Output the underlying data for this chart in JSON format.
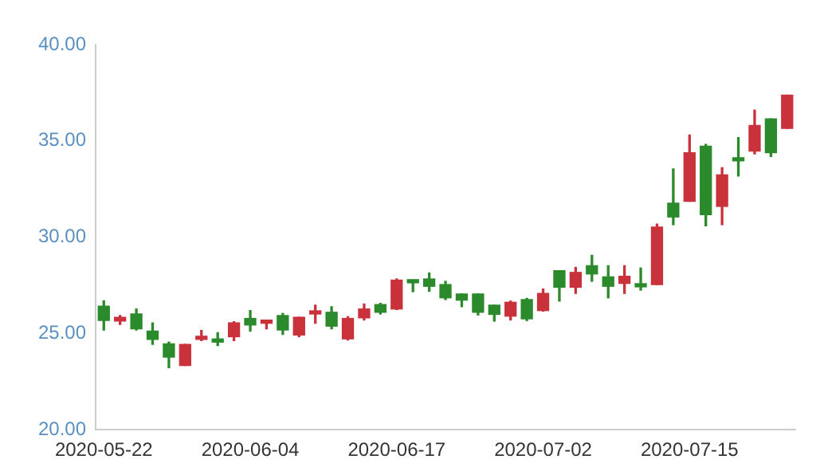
{
  "chart_data": {
    "type": "candlestick",
    "categories": [
      "2020-05-22",
      null,
      null,
      null,
      null,
      null,
      null,
      null,
      null,
      "2020-06-04",
      null,
      null,
      null,
      null,
      null,
      null,
      null,
      null,
      "2020-06-17",
      null,
      null,
      null,
      null,
      null,
      null,
      null,
      null,
      "2020-07-02",
      null,
      null,
      null,
      null,
      null,
      null,
      null,
      null,
      "2020-07-15",
      null,
      null,
      null,
      null,
      null,
      null
    ],
    "ohlc": [
      [
        26.42,
        26.7,
        25.18,
        25.67
      ],
      [
        25.64,
        25.93,
        25.47,
        25.84
      ],
      [
        26.01,
        26.27,
        25.18,
        25.24
      ],
      [
        25.12,
        25.55,
        24.43,
        24.69
      ],
      [
        24.46,
        24.55,
        23.22,
        23.77
      ],
      [
        23.34,
        24.43,
        23.34,
        24.43
      ],
      [
        24.69,
        25.15,
        24.63,
        24.78
      ],
      [
        24.69,
        25.04,
        24.37,
        24.55
      ],
      [
        24.83,
        25.61,
        24.63,
        25.55
      ],
      [
        25.78,
        26.19,
        25.12,
        25.44
      ],
      [
        25.53,
        25.67,
        25.24,
        25.67
      ],
      [
        25.93,
        26.04,
        24.95,
        25.18
      ],
      [
        24.92,
        25.84,
        24.83,
        25.84
      ],
      [
        26.01,
        26.47,
        25.53,
        26.1
      ],
      [
        26.1,
        26.39,
        25.24,
        25.38
      ],
      [
        24.72,
        25.87,
        24.66,
        25.78
      ],
      [
        25.81,
        26.53,
        25.7,
        26.27
      ],
      [
        26.5,
        26.56,
        26.01,
        26.1
      ],
      [
        26.27,
        27.83,
        26.24,
        27.77
      ],
      [
        27.74,
        27.74,
        27.17,
        27.63
      ],
      [
        27.83,
        28.14,
        27.19,
        27.45
      ],
      [
        27.54,
        27.71,
        26.76,
        26.85
      ],
      [
        27.05,
        27.05,
        26.39,
        26.73
      ],
      [
        27.05,
        27.05,
        25.96,
        26.1
      ],
      [
        26.47,
        26.47,
        25.64,
        25.99
      ],
      [
        25.9,
        26.68,
        25.7,
        26.62
      ],
      [
        26.76,
        26.82,
        25.67,
        25.76
      ],
      [
        26.19,
        27.31,
        26.16,
        27.08
      ],
      [
        28.26,
        28.26,
        26.68,
        27.4
      ],
      [
        27.4,
        28.43,
        27.08,
        28.17
      ],
      [
        28.52,
        29.06,
        27.71,
        28.09
      ],
      [
        27.94,
        28.52,
        26.85,
        27.45
      ],
      [
        27.6,
        28.52,
        27.08,
        27.97
      ],
      [
        27.54,
        28.4,
        27.25,
        27.42
      ],
      [
        27.54,
        30.68,
        27.54,
        30.53
      ],
      [
        31.77,
        33.55,
        30.65,
        31.05
      ],
      [
        31.86,
        35.31,
        31.86,
        34.39
      ],
      [
        34.73,
        34.82,
        30.59,
        31.17
      ],
      [
        31.6,
        33.61,
        30.65,
        33.24
      ],
      [
        34.07,
        35.17,
        33.18,
        33.96
      ],
      [
        34.47,
        36.6,
        34.33,
        35.8
      ],
      [
        36.14,
        36.14,
        34.19,
        34.39
      ],
      [
        35.65,
        37.38,
        35.65,
        37.38
      ]
    ],
    "colors": [
      "#2b8a2b",
      "#c9313b",
      "#2b8a2b",
      "#2b8a2b",
      "#2b8a2b",
      "#c9313b",
      "#c9313b",
      "#2b8a2b",
      "#c9313b",
      "#2b8a2b",
      "#c9313b",
      "#2b8a2b",
      "#c9313b",
      "#c9313b",
      "#2b8a2b",
      "#c9313b",
      "#c9313b",
      "#2b8a2b",
      "#c9313b",
      "#2b8a2b",
      "#2b8a2b",
      "#2b8a2b",
      "#2b8a2b",
      "#2b8a2b",
      "#2b8a2b",
      "#c9313b",
      "#2b8a2b",
      "#c9313b",
      "#2b8a2b",
      "#c9313b",
      "#2b8a2b",
      "#2b8a2b",
      "#c9313b",
      "#2b8a2b",
      "#c9313b",
      "#2b8a2b",
      "#c9313b",
      "#2b8a2b",
      "#c9313b",
      "#2b8a2b",
      "#c9313b",
      "#2b8a2b",
      "#c9313b"
    ],
    "ylim": [
      20,
      40
    ],
    "yticks": [
      {
        "value": 20,
        "label": "20.00"
      },
      {
        "value": 25,
        "label": "25.00"
      },
      {
        "value": 30,
        "label": "30.00"
      },
      {
        "value": 35,
        "label": "35.00"
      },
      {
        "value": 40,
        "label": "40.00"
      }
    ]
  }
}
